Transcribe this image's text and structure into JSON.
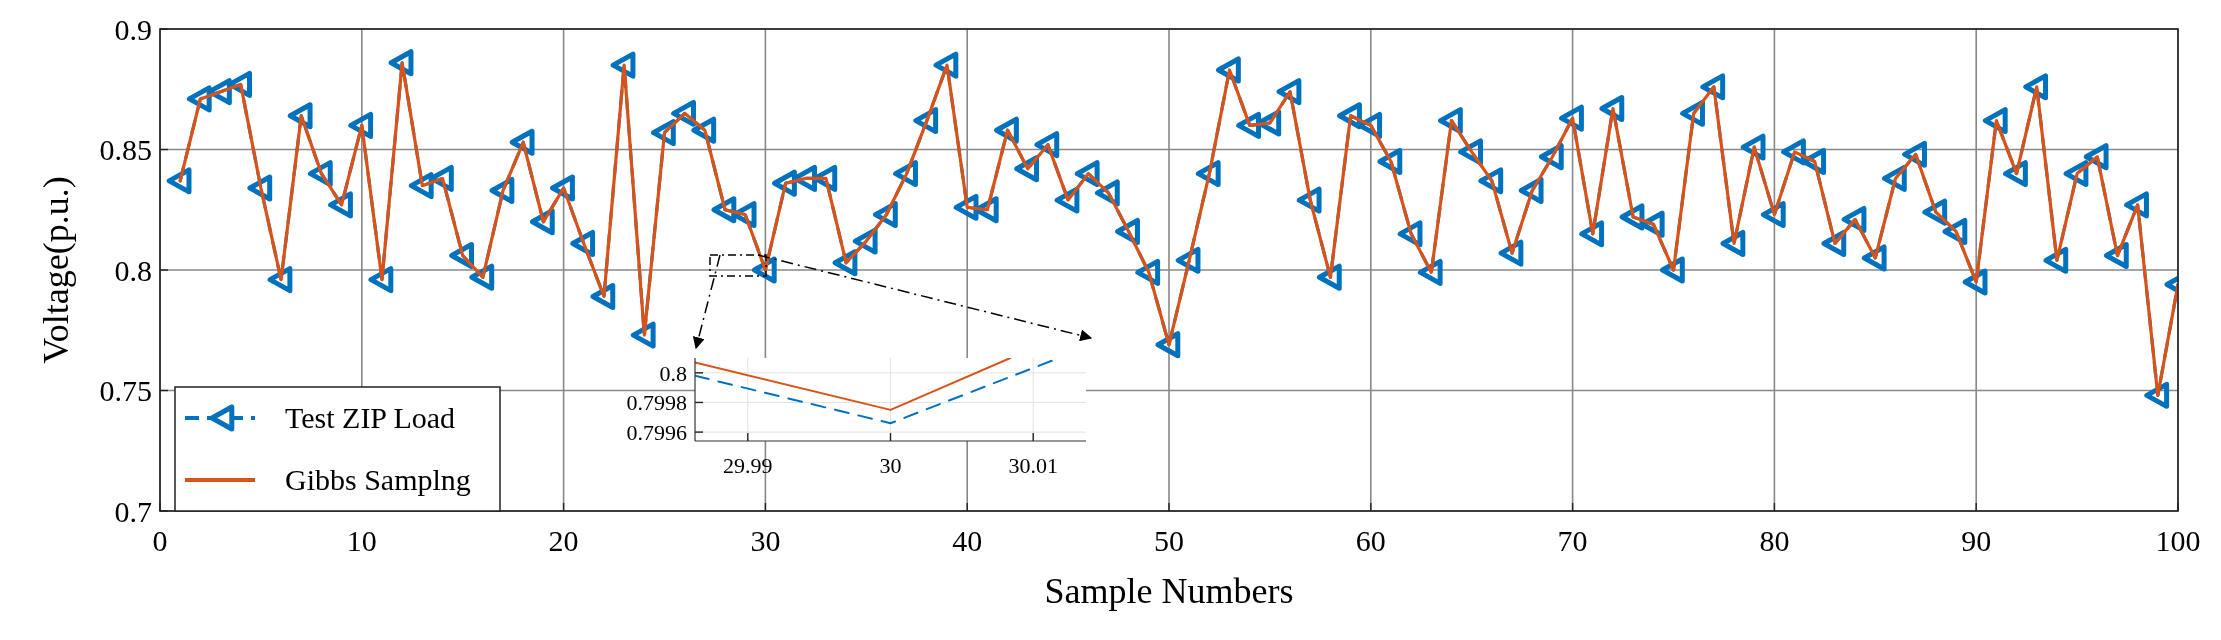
{
  "chart_data": [
    {
      "type": "line",
      "xlabel": "Sample Numbers",
      "ylabel": "Voltage(p.u.)",
      "x": [
        1,
        2,
        3,
        4,
        5,
        6,
        7,
        8,
        9,
        10,
        11,
        12,
        13,
        14,
        15,
        16,
        17,
        18,
        19,
        20,
        21,
        22,
        23,
        24,
        25,
        26,
        27,
        28,
        29,
        30,
        31,
        32,
        33,
        34,
        35,
        36,
        37,
        38,
        39,
        40,
        41,
        42,
        43,
        44,
        45,
        46,
        47,
        48,
        49,
        50,
        51,
        52,
        53,
        54,
        55,
        56,
        57,
        58,
        59,
        60,
        61,
        62,
        63,
        64,
        65,
        66,
        67,
        68,
        69,
        70,
        71,
        72,
        73,
        74,
        75,
        76,
        77,
        78,
        79,
        80,
        81,
        82,
        83,
        84,
        85,
        86,
        87,
        88,
        89,
        90,
        91,
        92,
        93,
        94,
        95,
        96,
        97,
        98,
        99,
        100
      ],
      "series": [
        {
          "name": "Test ZIP Load",
          "color": "#0072bd",
          "marker": "triangle",
          "line_style": "dashed",
          "values": [
            0.837,
            0.871,
            0.874,
            0.877,
            0.834,
            0.796,
            0.864,
            0.84,
            0.827,
            0.86,
            0.796,
            0.886,
            0.835,
            0.838,
            0.806,
            0.797,
            0.833,
            0.853,
            0.82,
            0.834,
            0.811,
            0.789,
            0.885,
            0.773,
            0.857,
            0.865,
            0.858,
            0.825,
            0.823,
            0.8,
            0.836,
            0.838,
            0.838,
            0.803,
            0.812,
            0.823,
            0.84,
            0.862,
            0.885,
            0.826,
            0.825,
            0.858,
            0.842,
            0.852,
            0.829,
            0.84,
            0.832,
            0.816,
            0.799,
            0.769,
            0.804,
            0.84,
            0.883,
            0.86,
            0.861,
            0.874,
            0.829,
            0.797,
            0.864,
            0.86,
            0.845,
            0.815,
            0.799,
            0.862,
            0.849,
            0.837,
            0.807,
            0.833,
            0.847,
            0.863,
            0.815,
            0.867,
            0.822,
            0.819,
            0.8,
            0.865,
            0.876,
            0.811,
            0.851,
            0.823,
            0.849,
            0.845,
            0.811,
            0.821,
            0.805,
            0.838,
            0.848,
            0.824,
            0.816,
            0.795,
            0.862,
            0.84,
            0.876,
            0.804,
            0.84,
            0.847,
            0.806,
            0.827,
            0.748,
            0.794
          ]
        },
        {
          "name": "Gibbs Samplng",
          "color": "#d95319",
          "marker": "none",
          "line_style": "solid",
          "values": [
            0.837,
            0.871,
            0.874,
            0.877,
            0.834,
            0.796,
            0.864,
            0.84,
            0.827,
            0.86,
            0.796,
            0.886,
            0.835,
            0.838,
            0.806,
            0.797,
            0.833,
            0.853,
            0.82,
            0.834,
            0.811,
            0.789,
            0.885,
            0.773,
            0.857,
            0.865,
            0.858,
            0.825,
            0.823,
            0.8,
            0.836,
            0.838,
            0.838,
            0.803,
            0.812,
            0.823,
            0.84,
            0.862,
            0.885,
            0.826,
            0.825,
            0.858,
            0.842,
            0.852,
            0.829,
            0.84,
            0.832,
            0.816,
            0.799,
            0.769,
            0.804,
            0.84,
            0.883,
            0.86,
            0.861,
            0.874,
            0.829,
            0.797,
            0.864,
            0.86,
            0.845,
            0.815,
            0.799,
            0.862,
            0.849,
            0.837,
            0.807,
            0.833,
            0.847,
            0.863,
            0.815,
            0.867,
            0.822,
            0.819,
            0.8,
            0.865,
            0.876,
            0.811,
            0.851,
            0.823,
            0.849,
            0.845,
            0.811,
            0.821,
            0.805,
            0.838,
            0.848,
            0.824,
            0.816,
            0.795,
            0.862,
            0.84,
            0.876,
            0.804,
            0.84,
            0.847,
            0.806,
            0.827,
            0.748,
            0.794
          ]
        }
      ],
      "xlim": [
        0,
        100
      ],
      "xticks": [
        0,
        10,
        20,
        30,
        40,
        50,
        60,
        70,
        80,
        90,
        100
      ],
      "ylim": [
        0.7,
        0.9
      ],
      "yticks": [
        0.7,
        0.75,
        0.8,
        0.85,
        0.9
      ],
      "grid": true,
      "legend": "bottom left"
    },
    {
      "type": "line",
      "series": [
        {
          "color": "#0072bd",
          "line_style": "dashed",
          "x": [
            29.9863,
            30,
            30.0118
          ],
          "values": [
            0.79998,
            0.79966,
            0.8001
          ]
        },
        {
          "color": "#d95319",
          "line_style": "solid",
          "x": [
            29.9863,
            30,
            30.0084
          ],
          "values": [
            0.80007,
            0.79975,
            0.8001
          ]
        }
      ],
      "xlim": [
        29.9863,
        30.0137
      ],
      "xticks": [
        29.99,
        30,
        30.01
      ],
      "ylim": [
        0.79954,
        0.8001
      ],
      "yticks": [
        0.7996,
        0.7998,
        0.8
      ],
      "grid": true
    }
  ]
}
